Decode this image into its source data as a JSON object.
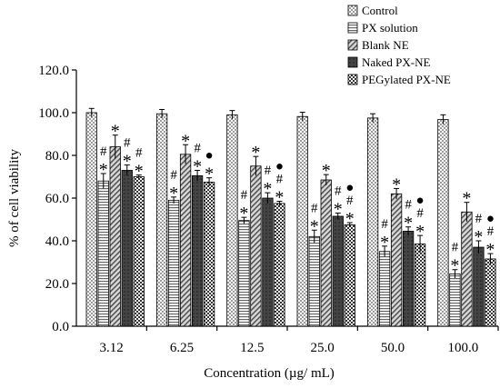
{
  "chart_data": {
    "type": "bar",
    "xlabel": "Concentration (µg/ mL)",
    "ylabel": "% of cell viability",
    "ylim": [
      0,
      120
    ],
    "yticks": [
      "0.0",
      "20.0",
      "40.0",
      "60.0",
      "80.0",
      "100.0",
      "120.0"
    ],
    "categories": [
      "3.12",
      "6.25",
      "12.5",
      "25.0",
      "50.0",
      "100.0"
    ],
    "legend_position": "top-right",
    "grid": false,
    "series": [
      {
        "name": "Control",
        "pattern": "dots",
        "values": [
          100.0,
          99.5,
          99.0,
          98.2,
          97.5,
          96.8
        ],
        "errors": [
          2.0,
          2.0,
          2.0,
          2.0,
          2.0,
          2.2
        ],
        "marks": [
          "",
          "",
          "",
          "",
          "",
          ""
        ]
      },
      {
        "name": "PX solution",
        "pattern": "hlines",
        "values": [
          68.0,
          59.0,
          49.5,
          42.0,
          35.0,
          24.5
        ],
        "errors": [
          3.5,
          1.5,
          1.5,
          3.0,
          2.5,
          2.0
        ],
        "marks": [
          "#*",
          "#*",
          "#*",
          "#*",
          "#*",
          "#*"
        ]
      },
      {
        "name": "Blank NE",
        "pattern": "diag",
        "values": [
          84.0,
          80.5,
          75.0,
          68.5,
          62.0,
          53.5
        ],
        "errors": [
          5.5,
          4.5,
          4.5,
          2.5,
          2.5,
          4.5
        ],
        "marks": [
          "*",
          "*",
          "*",
          "*",
          "*",
          "*"
        ]
      },
      {
        "name": "Naked PX-NE",
        "pattern": "dark",
        "values": [
          73.0,
          70.5,
          60.0,
          51.5,
          44.5,
          37.0
        ],
        "errors": [
          2.5,
          2.5,
          2.5,
          1.5,
          2.0,
          3.0
        ],
        "marks": [
          "#*",
          "#*",
          "#*",
          "#*",
          "#*",
          "#*"
        ]
      },
      {
        "name": "PEGylated PX-NE",
        "pattern": "checker",
        "values": [
          70.0,
          67.5,
          57.5,
          47.5,
          38.5,
          31.5
        ],
        "errors": [
          0.8,
          2.0,
          1.0,
          1.0,
          4.0,
          2.5
        ],
        "marks": [
          "#*",
          "●*",
          "●#*",
          "●#*",
          "●#*",
          "●#*"
        ]
      }
    ]
  }
}
